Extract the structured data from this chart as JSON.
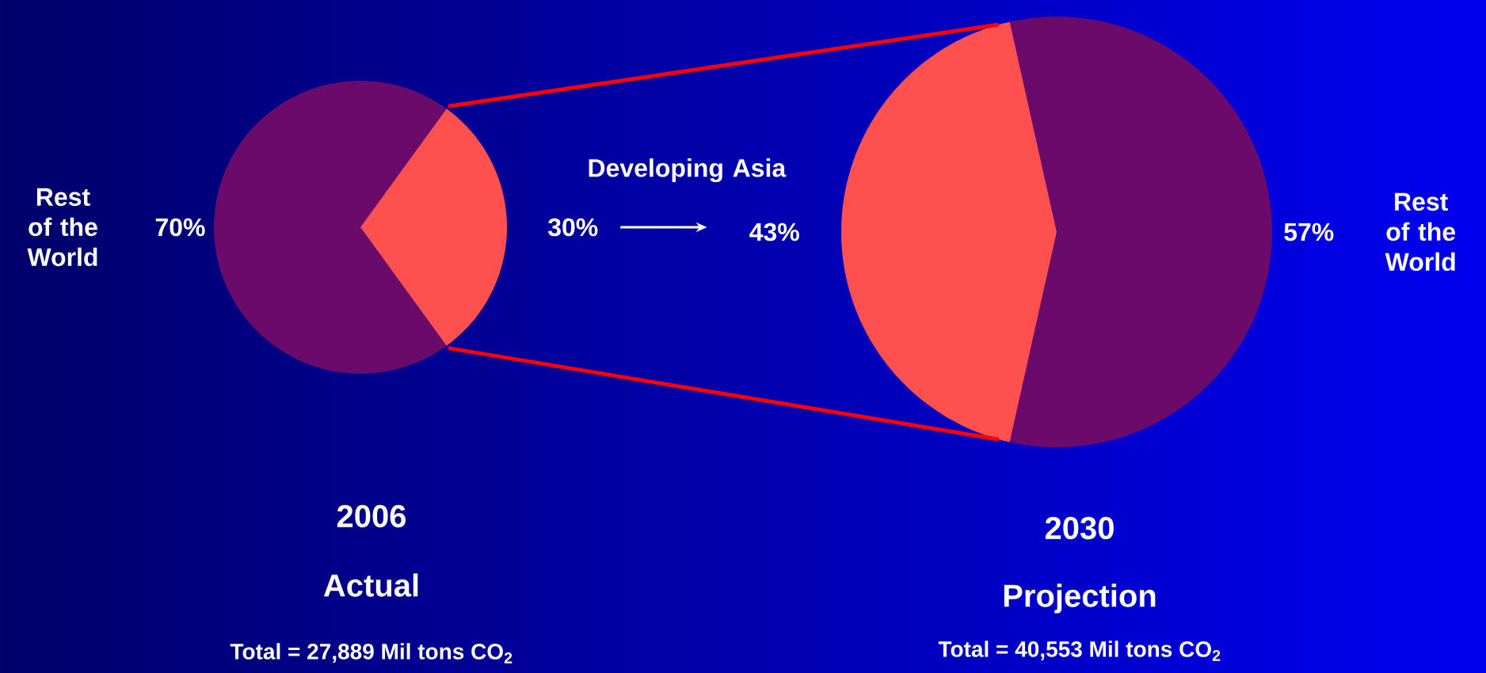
{
  "chart_data": [
    {
      "type": "pie",
      "title": "2006",
      "subtitle": "Actual",
      "annotations": [
        "Total = 27,889 Mil tons CO$_{2}$"
      ],
      "categories": [
        "Rest of the World",
        "Developing Asia"
      ],
      "values": [
        70,
        30
      ],
      "value_labels": [
        "70%",
        "30%"
      ],
      "colors": [
        "#6a0a6a",
        "#ff5050"
      ]
    },
    {
      "type": "pie",
      "title": "2030",
      "subtitle": "Projection",
      "annotations": [
        "Total = 40,553 Mil tons CO$_{2}$"
      ],
      "categories": [
        "Rest of the World",
        null
      ],
      "values": [
        57,
        43
      ],
      "value_labels": [
        "57%",
        "43%"
      ],
      "colors": [
        "#6a0a6a",
        "#ff5050"
      ]
    }
  ]
}
